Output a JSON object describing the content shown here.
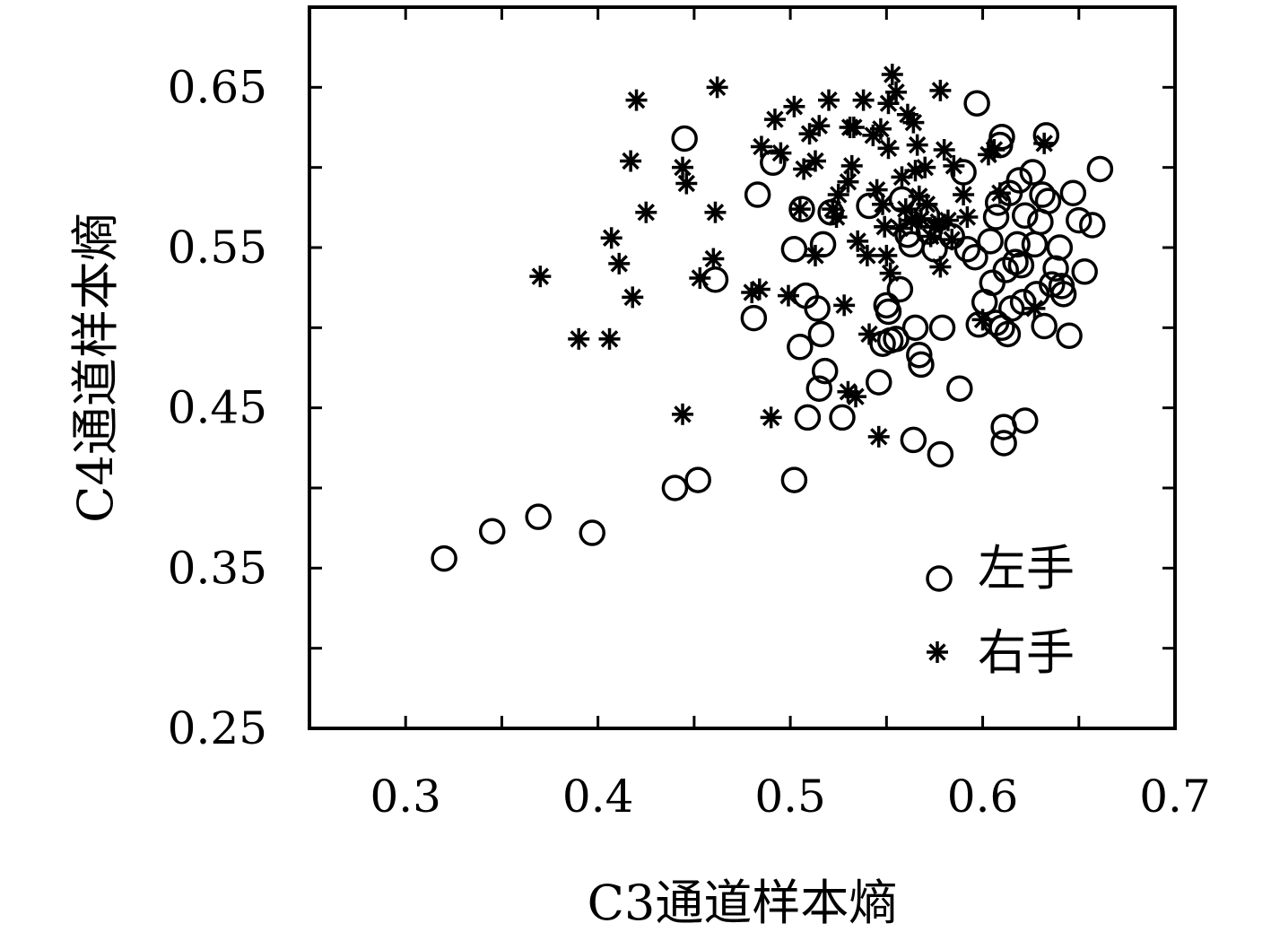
{
  "chart_data": {
    "type": "scatter",
    "title": "",
    "xlabel": "C3通道样本熵",
    "ylabel": "C4通道样本熵",
    "xlim": [
      0.25,
      0.7
    ],
    "ylim": [
      0.25,
      0.7
    ],
    "x_ticks": [
      0.3,
      0.4,
      0.5,
      0.6,
      0.7
    ],
    "y_ticks": [
      0.25,
      0.35,
      0.45,
      0.55,
      0.65
    ],
    "x_tick_labels": [
      "0.3",
      "0.4",
      "0.5",
      "0.6",
      "0.7"
    ],
    "y_tick_labels": [
      "0.25",
      "0.35",
      "0.45",
      "0.55",
      "0.65"
    ],
    "grid": false,
    "legend_position": "bottom-right",
    "series": [
      {
        "name": "左手",
        "marker": "circle",
        "color": "#000000",
        "points": [
          [
            0.32,
            0.356
          ],
          [
            0.345,
            0.373
          ],
          [
            0.369,
            0.382
          ],
          [
            0.397,
            0.372
          ],
          [
            0.44,
            0.4
          ],
          [
            0.452,
            0.405
          ],
          [
            0.445,
            0.618
          ],
          [
            0.461,
            0.53
          ],
          [
            0.481,
            0.506
          ],
          [
            0.483,
            0.583
          ],
          [
            0.491,
            0.603
          ],
          [
            0.502,
            0.549
          ],
          [
            0.502,
            0.405
          ],
          [
            0.505,
            0.488
          ],
          [
            0.506,
            0.574
          ],
          [
            0.508,
            0.52
          ],
          [
            0.509,
            0.444
          ],
          [
            0.514,
            0.512
          ],
          [
            0.515,
            0.462
          ],
          [
            0.516,
            0.496
          ],
          [
            0.517,
            0.552
          ],
          [
            0.518,
            0.473
          ],
          [
            0.521,
            0.572
          ],
          [
            0.527,
            0.444
          ],
          [
            0.541,
            0.576
          ],
          [
            0.546,
            0.466
          ],
          [
            0.548,
            0.49
          ],
          [
            0.55,
            0.514
          ],
          [
            0.551,
            0.51
          ],
          [
            0.552,
            0.492
          ],
          [
            0.555,
            0.493
          ],
          [
            0.557,
            0.524
          ],
          [
            0.558,
            0.58
          ],
          [
            0.561,
            0.558
          ],
          [
            0.563,
            0.552
          ],
          [
            0.564,
            0.43
          ],
          [
            0.565,
            0.5
          ],
          [
            0.567,
            0.483
          ],
          [
            0.568,
            0.477
          ],
          [
            0.571,
            0.57
          ],
          [
            0.572,
            0.56
          ],
          [
            0.575,
            0.549
          ],
          [
            0.578,
            0.421
          ],
          [
            0.579,
            0.5
          ],
          [
            0.584,
            0.557
          ],
          [
            0.588,
            0.462
          ],
          [
            0.59,
            0.597
          ],
          [
            0.592,
            0.549
          ],
          [
            0.596,
            0.544
          ],
          [
            0.597,
            0.64
          ],
          [
            0.598,
            0.502
          ],
          [
            0.601,
            0.516
          ],
          [
            0.604,
            0.554
          ],
          [
            0.605,
            0.528
          ],
          [
            0.607,
            0.503
          ],
          [
            0.607,
            0.569
          ],
          [
            0.608,
            0.578
          ],
          [
            0.609,
            0.614
          ],
          [
            0.61,
            0.619
          ],
          [
            0.61,
            0.5
          ],
          [
            0.611,
            0.438
          ],
          [
            0.611,
            0.428
          ],
          [
            0.612,
            0.536
          ],
          [
            0.613,
            0.496
          ],
          [
            0.614,
            0.584
          ],
          [
            0.615,
            0.512
          ],
          [
            0.617,
            0.541
          ],
          [
            0.618,
            0.552
          ],
          [
            0.619,
            0.592
          ],
          [
            0.62,
            0.539
          ],
          [
            0.621,
            0.516
          ],
          [
            0.622,
            0.57
          ],
          [
            0.622,
            0.442
          ],
          [
            0.626,
            0.597
          ],
          [
            0.627,
            0.552
          ],
          [
            0.628,
            0.521
          ],
          [
            0.63,
            0.566
          ],
          [
            0.631,
            0.583
          ],
          [
            0.632,
            0.501
          ],
          [
            0.633,
            0.62
          ],
          [
            0.634,
            0.579
          ],
          [
            0.636,
            0.527
          ],
          [
            0.638,
            0.537
          ],
          [
            0.64,
            0.55
          ],
          [
            0.641,
            0.526
          ],
          [
            0.642,
            0.521
          ],
          [
            0.645,
            0.495
          ],
          [
            0.647,
            0.584
          ],
          [
            0.65,
            0.567
          ],
          [
            0.653,
            0.535
          ],
          [
            0.657,
            0.564
          ],
          [
            0.661,
            0.599
          ]
        ]
      },
      {
        "name": "右手",
        "marker": "asterisk",
        "color": "#000000",
        "points": [
          [
            0.37,
            0.532
          ],
          [
            0.39,
            0.493
          ],
          [
            0.406,
            0.493
          ],
          [
            0.407,
            0.556
          ],
          [
            0.411,
            0.54
          ],
          [
            0.417,
            0.604
          ],
          [
            0.418,
            0.519
          ],
          [
            0.42,
            0.642
          ],
          [
            0.425,
            0.572
          ],
          [
            0.444,
            0.446
          ],
          [
            0.444,
            0.6
          ],
          [
            0.446,
            0.59
          ],
          [
            0.453,
            0.531
          ],
          [
            0.46,
            0.543
          ],
          [
            0.461,
            0.572
          ],
          [
            0.462,
            0.65
          ],
          [
            0.48,
            0.522
          ],
          [
            0.484,
            0.524
          ],
          [
            0.485,
            0.613
          ],
          [
            0.49,
            0.444
          ],
          [
            0.492,
            0.63
          ],
          [
            0.495,
            0.609
          ],
          [
            0.499,
            0.52
          ],
          [
            0.502,
            0.638
          ],
          [
            0.505,
            0.574
          ],
          [
            0.507,
            0.599
          ],
          [
            0.51,
            0.621
          ],
          [
            0.513,
            0.604
          ],
          [
            0.513,
            0.545
          ],
          [
            0.515,
            0.626
          ],
          [
            0.52,
            0.642
          ],
          [
            0.522,
            0.574
          ],
          [
            0.524,
            0.569
          ],
          [
            0.525,
            0.583
          ],
          [
            0.528,
            0.514
          ],
          [
            0.53,
            0.46
          ],
          [
            0.53,
            0.591
          ],
          [
            0.531,
            0.625
          ],
          [
            0.532,
            0.601
          ],
          [
            0.533,
            0.625
          ],
          [
            0.534,
            0.457
          ],
          [
            0.535,
            0.554
          ],
          [
            0.538,
            0.642
          ],
          [
            0.54,
            0.545
          ],
          [
            0.541,
            0.496
          ],
          [
            0.543,
            0.62
          ],
          [
            0.545,
            0.586
          ],
          [
            0.546,
            0.432
          ],
          [
            0.547,
            0.624
          ],
          [
            0.548,
            0.577
          ],
          [
            0.549,
            0.563
          ],
          [
            0.55,
            0.545
          ],
          [
            0.551,
            0.64
          ],
          [
            0.551,
            0.612
          ],
          [
            0.552,
            0.534
          ],
          [
            0.553,
            0.658
          ],
          [
            0.555,
            0.647
          ],
          [
            0.557,
            0.562
          ],
          [
            0.558,
            0.594
          ],
          [
            0.56,
            0.574
          ],
          [
            0.561,
            0.633
          ],
          [
            0.563,
            0.567
          ],
          [
            0.564,
            0.628
          ],
          [
            0.565,
            0.598
          ],
          [
            0.566,
            0.614
          ],
          [
            0.567,
            0.582
          ],
          [
            0.568,
            0.568
          ],
          [
            0.57,
            0.6
          ],
          [
            0.571,
            0.577
          ],
          [
            0.573,
            0.557
          ],
          [
            0.575,
            0.563
          ],
          [
            0.577,
            0.566
          ],
          [
            0.578,
            0.648
          ],
          [
            0.578,
            0.538
          ],
          [
            0.58,
            0.611
          ],
          [
            0.582,
            0.567
          ],
          [
            0.584,
            0.555
          ],
          [
            0.585,
            0.601
          ],
          [
            0.59,
            0.583
          ],
          [
            0.592,
            0.569
          ],
          [
            0.6,
            0.505
          ],
          [
            0.603,
            0.608
          ],
          [
            0.606,
            0.611
          ],
          [
            0.609,
            0.584
          ],
          [
            0.627,
            0.512
          ],
          [
            0.632,
            0.615
          ]
        ]
      }
    ]
  }
}
